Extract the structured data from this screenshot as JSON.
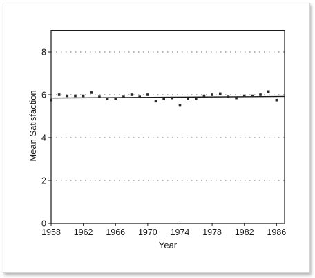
{
  "chart_data": {
    "type": "scatter",
    "title": "",
    "xlabel": "Year",
    "ylabel": "Mean Satisfaction",
    "xlim": [
      1958,
      1987
    ],
    "ylim": [
      0,
      9
    ],
    "x_ticks": [
      1958,
      1962,
      1966,
      1970,
      1974,
      1978,
      1982,
      1986
    ],
    "y_ticks": [
      0,
      2,
      4,
      6,
      8
    ],
    "grid": "dotted horizontal at y ticks",
    "legend": "none",
    "series": [
      {
        "points": [
          [
            1958,
            5.75
          ],
          [
            1959,
            6.0
          ],
          [
            1960,
            5.95
          ],
          [
            1961,
            5.95
          ],
          [
            1962,
            5.95
          ],
          [
            1963,
            6.1
          ],
          [
            1964,
            5.9
          ],
          [
            1965,
            5.8
          ],
          [
            1966,
            5.8
          ],
          [
            1967,
            5.9
          ],
          [
            1968,
            6.0
          ],
          [
            1969,
            5.9
          ],
          [
            1970,
            6.0
          ],
          [
            1971,
            5.7
          ],
          [
            1972,
            5.8
          ],
          [
            1973,
            5.85
          ],
          [
            1974,
            5.5
          ],
          [
            1975,
            5.8
          ],
          [
            1976,
            5.8
          ],
          [
            1977,
            5.95
          ],
          [
            1978,
            6.0
          ],
          [
            1979,
            6.05
          ],
          [
            1980,
            5.9
          ],
          [
            1981,
            5.85
          ],
          [
            1982,
            5.95
          ],
          [
            1983,
            5.95
          ],
          [
            1984,
            6.0
          ],
          [
            1985,
            6.15
          ],
          [
            1986,
            5.75
          ]
        ]
      }
    ],
    "fit_line": {
      "x": [
        1958,
        1987
      ],
      "y": [
        5.85,
        5.92
      ]
    },
    "colors": {
      "points": "#2a2a2a",
      "line": "#1a1a1a",
      "grid": "#8a8a8a"
    }
  }
}
